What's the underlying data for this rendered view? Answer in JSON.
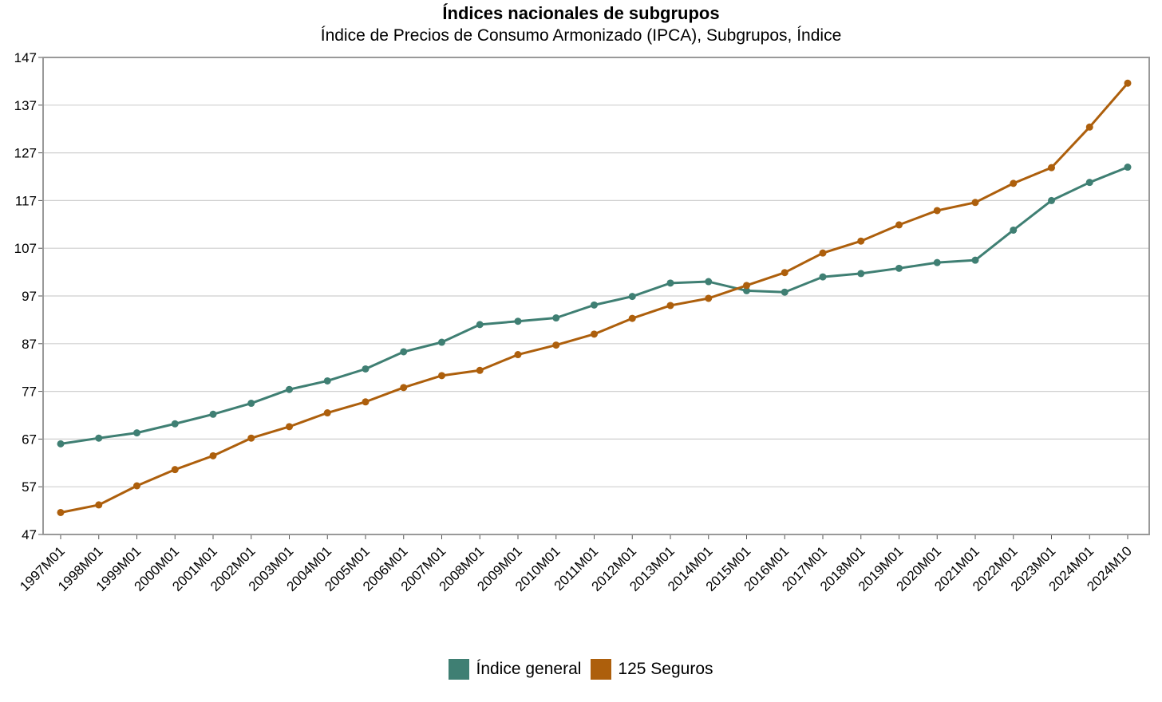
{
  "chart_data": {
    "type": "line",
    "title": "Índices nacionales de subgrupos",
    "subtitle": "Índice de Precios de Consumo Armonizado (IPCA), Subgrupos, Índice",
    "xlabel": "",
    "ylabel": "",
    "ylim": [
      47,
      147
    ],
    "yticks": [
      "47",
      "57",
      "67",
      "77",
      "87",
      "97",
      "107",
      "117",
      "127",
      "137",
      "147"
    ],
    "grid": true,
    "legend_position": "bottom-center",
    "categories": [
      "1997M01",
      "1998M01",
      "1999M01",
      "2000M01",
      "2001M01",
      "2002M01",
      "2003M01",
      "2004M01",
      "2005M01",
      "2006M01",
      "2007M01",
      "2008M01",
      "2009M01",
      "2010M01",
      "2011M01",
      "2012M01",
      "2013M01",
      "2014M01",
      "2015M01",
      "2016M01",
      "2017M01",
      "2018M01",
      "2019M01",
      "2020M01",
      "2021M01",
      "2022M01",
      "2023M01",
      "2024M01",
      "2024M10"
    ],
    "series": [
      {
        "name": "Índice general",
        "color": "#3f7f73",
        "values": [
          66,
          67.2,
          68.3,
          70.2,
          72.2,
          74.5,
          77.4,
          79.2,
          81.7,
          85.3,
          87.3,
          91,
          91.7,
          92.4,
          95.1,
          96.9,
          99.7,
          100,
          98.1,
          97.8,
          101,
          101.7,
          102.8,
          104,
          104.5,
          110.8,
          117,
          120.8,
          124
        ]
      },
      {
        "name": "125 Seguros",
        "color": "#ad5f0c",
        "values": [
          51.6,
          53.2,
          57.2,
          60.6,
          63.5,
          67.2,
          69.6,
          72.5,
          74.8,
          77.8,
          80.3,
          81.4,
          84.7,
          86.7,
          89,
          92.3,
          95,
          96.5,
          99.2,
          101.9,
          106,
          108.5,
          111.9,
          114.9,
          116.6,
          120.6,
          123.9,
          132.4,
          141.6
        ]
      }
    ]
  }
}
